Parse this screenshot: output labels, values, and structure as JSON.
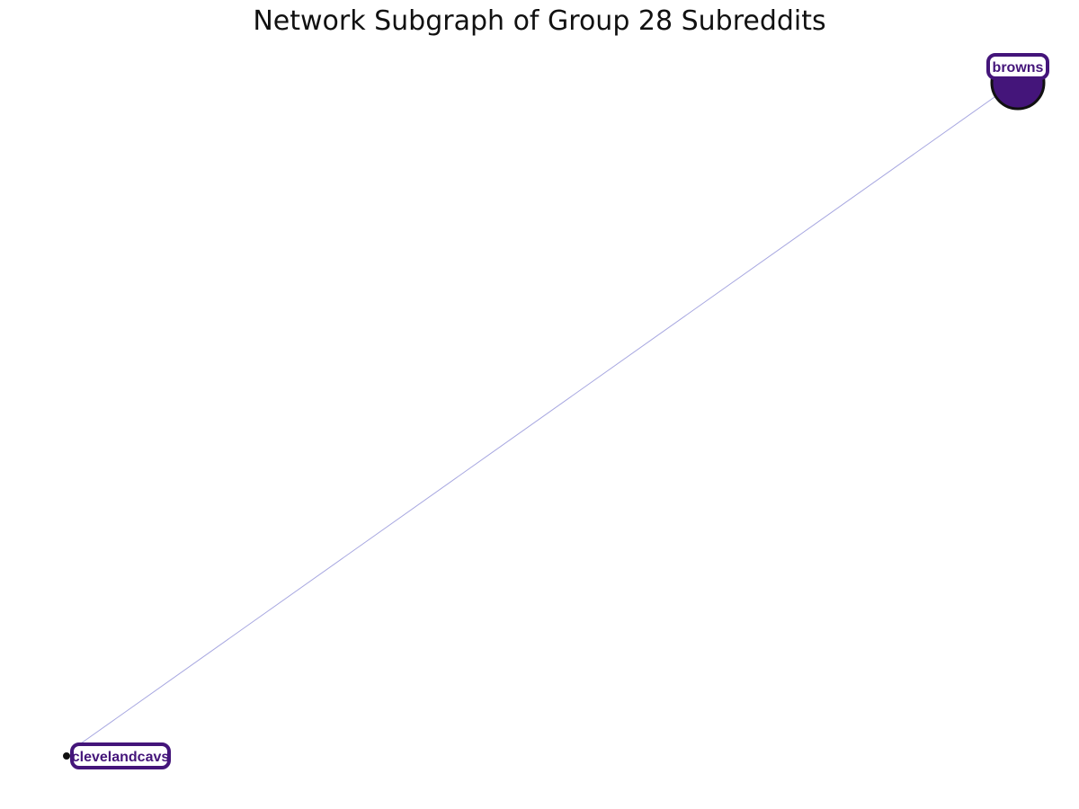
{
  "title": "Network Subgraph of Group 28 Subreddits",
  "colors": {
    "node_fill": "#44157a",
    "node_stroke": "#111111",
    "label_border": "#44157a",
    "label_text": "#44157a",
    "edge": "#a6a6e0"
  },
  "nodes": [
    {
      "id": "browns",
      "label": "browns"
    },
    {
      "id": "clevelandcavs",
      "label": "clevelandcavs"
    }
  ],
  "edges": [
    {
      "source": "browns",
      "target": "clevelandcavs"
    }
  ]
}
